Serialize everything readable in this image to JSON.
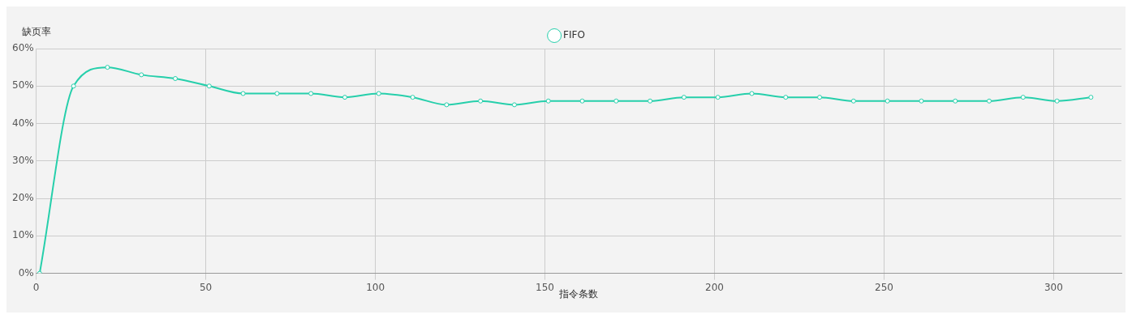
{
  "chart_data": {
    "type": "line",
    "xlabel": "指令条数",
    "ylabel": "缺页率",
    "x": [
      1,
      11,
      21,
      31,
      41,
      51,
      61,
      71,
      81,
      91,
      101,
      111,
      121,
      131,
      141,
      151,
      161,
      171,
      181,
      191,
      201,
      211,
      221,
      231,
      241,
      251,
      261,
      271,
      281,
      291,
      301,
      311
    ],
    "series": [
      {
        "name": "FIFO",
        "color": "#26cfab",
        "values": [
          0,
          50,
          55,
          53,
          52,
          50,
          48,
          48,
          48,
          47,
          48,
          47,
          45,
          46,
          45,
          46,
          46,
          46,
          46,
          47,
          47,
          48,
          47,
          47,
          46,
          46,
          46,
          46,
          46,
          47,
          46,
          47
        ]
      }
    ],
    "xlim": [
      0,
      320
    ],
    "xticks": [
      0,
      50,
      100,
      150,
      200,
      250,
      300
    ],
    "ylim": [
      0,
      60
    ],
    "yticks": [
      {
        "value": 0,
        "label": "0%"
      },
      {
        "value": 10,
        "label": "10%"
      },
      {
        "value": 20,
        "label": "20%"
      },
      {
        "value": 30,
        "label": "30%"
      },
      {
        "value": 40,
        "label": "40%"
      },
      {
        "value": 50,
        "label": "50%"
      },
      {
        "value": 60,
        "label": "60%"
      }
    ],
    "grid": true,
    "legend": "top",
    "marker": "circle",
    "line_style": "solid"
  }
}
